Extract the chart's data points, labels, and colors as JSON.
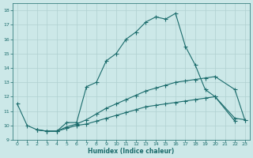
{
  "title": "",
  "xlabel": "Humidex (Indice chaleur)",
  "bg_color": "#cce8e8",
  "grid_color": "#b0d0d0",
  "line_color": "#1a6b6b",
  "xlim": [
    -0.5,
    23.5
  ],
  "ylim": [
    9.0,
    18.5
  ],
  "yticks": [
    9,
    10,
    11,
    12,
    13,
    14,
    15,
    16,
    17,
    18
  ],
  "xticks": [
    0,
    1,
    2,
    3,
    4,
    5,
    6,
    7,
    8,
    9,
    10,
    11,
    12,
    13,
    14,
    15,
    16,
    17,
    18,
    19,
    20,
    21,
    22,
    23
  ],
  "line1_x": [
    0,
    1,
    2,
    3,
    4,
    5,
    6,
    7,
    8,
    9,
    10,
    11,
    12,
    13,
    14,
    15,
    16,
    17,
    18,
    19,
    20,
    22
  ],
  "line1_y": [
    11.5,
    10.0,
    9.7,
    9.6,
    9.6,
    10.2,
    10.2,
    12.7,
    13.0,
    14.5,
    15.0,
    16.0,
    16.5,
    17.2,
    17.55,
    17.4,
    17.8,
    15.5,
    14.2,
    12.5,
    12.0,
    10.3
  ],
  "line2_x": [
    2,
    3,
    4,
    5,
    6,
    7,
    8,
    9,
    10,
    11,
    12,
    13,
    14,
    15,
    16,
    17,
    18,
    19,
    20,
    22,
    23
  ],
  "line2_y": [
    9.7,
    9.6,
    9.6,
    9.9,
    10.1,
    10.4,
    10.8,
    11.2,
    11.5,
    11.8,
    12.1,
    12.4,
    12.6,
    12.8,
    13.0,
    13.1,
    13.2,
    13.3,
    13.4,
    12.5,
    10.4
  ],
  "line3_x": [
    2,
    3,
    4,
    5,
    6,
    7,
    8,
    9,
    10,
    11,
    12,
    13,
    14,
    15,
    16,
    17,
    18,
    19,
    20,
    22,
    23
  ],
  "line3_y": [
    9.7,
    9.6,
    9.6,
    9.8,
    10.0,
    10.1,
    10.3,
    10.5,
    10.7,
    10.9,
    11.1,
    11.3,
    11.4,
    11.5,
    11.6,
    11.7,
    11.8,
    11.9,
    12.0,
    10.5,
    10.4
  ]
}
